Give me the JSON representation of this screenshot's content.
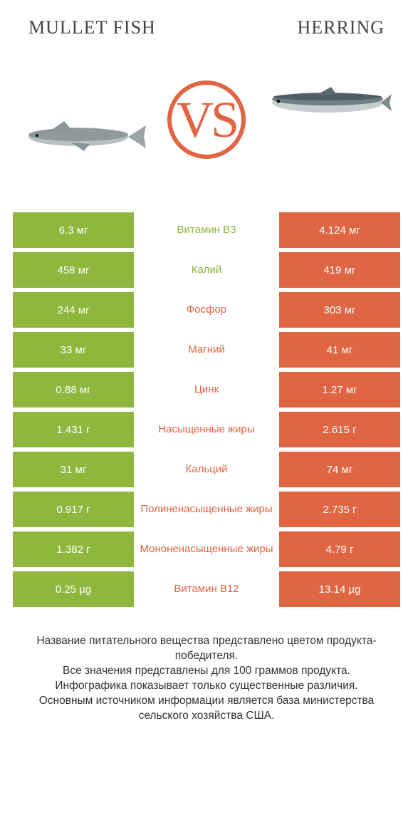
{
  "colors": {
    "green": "#8fb73e",
    "orange": "#e06543",
    "white": "#ffffff",
    "text": "#333333"
  },
  "header": {
    "left_title": "MULLET FISH",
    "right_title": "HERRING",
    "vs_label": "VS"
  },
  "table": {
    "rows": [
      {
        "left": "6.3 мг",
        "mid": "Витамин B3",
        "right": "4.124 мг",
        "winner": "left"
      },
      {
        "left": "458 мг",
        "mid": "Калий",
        "right": "419 мг",
        "winner": "left"
      },
      {
        "left": "244 мг",
        "mid": "Фосфор",
        "right": "303 мг",
        "winner": "right"
      },
      {
        "left": "33 мг",
        "mid": "Магний",
        "right": "41 мг",
        "winner": "right"
      },
      {
        "left": "0.88 мг",
        "mid": "Цинк",
        "right": "1.27 мг",
        "winner": "right"
      },
      {
        "left": "1.431 г",
        "mid": "Насыщенные жиры",
        "right": "2.615 г",
        "winner": "right"
      },
      {
        "left": "31 мг",
        "mid": "Кальций",
        "right": "74 мг",
        "winner": "right"
      },
      {
        "left": "0.917 г",
        "mid": "Полиненасыщенные жиры",
        "right": "2.735 г",
        "winner": "right"
      },
      {
        "left": "1.382 г",
        "mid": "Мононенасыщенные жиры",
        "right": "4.79 г",
        "winner": "right"
      },
      {
        "left": "0.25 µg",
        "mid": "Витамин B12",
        "right": "13.14 µg",
        "winner": "right"
      }
    ]
  },
  "footnote": {
    "line1": "Название питательного вещества представлено цветом продукта-победителя.",
    "line2": "Все значения представлены для 100 граммов продукта.",
    "line3": "Инфографика показывает только существенные различия.",
    "line4": "Основным источником информации является база министерства сельского хозяйства США."
  }
}
